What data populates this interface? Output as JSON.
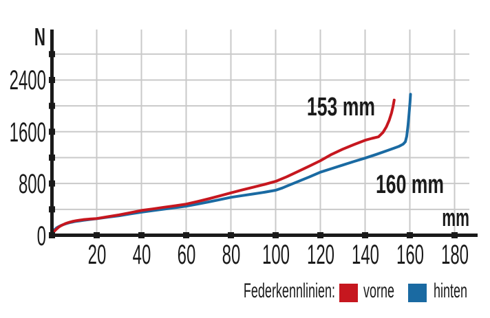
{
  "chart_data": {
    "type": "line",
    "title": "",
    "xlabel": "mm",
    "ylabel": "N",
    "xlim": [
      0,
      190.3
    ],
    "ylim": [
      0,
      3180
    ],
    "x_ticks": [
      20,
      40,
      60,
      80,
      100,
      120,
      140,
      160,
      180
    ],
    "y_ticks": [
      0,
      400,
      800,
      1200,
      1600,
      2000,
      2400,
      2800
    ],
    "y_tick_labels": [
      0,
      800,
      1600,
      2400
    ],
    "grid": true,
    "legend": {
      "title": "Federkennlinien:",
      "position": "bottom-right",
      "entries": [
        {
          "label": "vorne",
          "color": "#c6171f"
        },
        {
          "label": "hinten",
          "color": "#1a6aa2"
        }
      ]
    },
    "colors": {
      "grid": "#c9c9c9",
      "axis": "#1a1a1a",
      "text": "#1a1a1a",
      "vorne": "#c6171f",
      "hinten": "#1a6aa2"
    },
    "series": [
      {
        "name": "vorne",
        "color": "#c6171f",
        "points": [
          [
            0,
            0
          ],
          [
            1,
            60
          ],
          [
            2,
            95
          ],
          [
            3,
            125
          ],
          [
            4,
            147
          ],
          [
            5,
            165
          ],
          [
            6,
            180
          ],
          [
            7,
            192
          ],
          [
            8,
            203
          ],
          [
            9,
            212
          ],
          [
            10,
            220
          ],
          [
            11,
            226
          ],
          [
            12.5,
            234
          ],
          [
            14,
            241
          ],
          [
            17,
            251
          ],
          [
            20,
            258
          ],
          [
            25,
            287
          ],
          [
            30,
            314
          ],
          [
            35,
            348
          ],
          [
            40,
            383
          ],
          [
            45,
            407
          ],
          [
            50,
            432
          ],
          [
            55,
            456
          ],
          [
            60,
            481
          ],
          [
            65,
            521
          ],
          [
            70,
            563
          ],
          [
            75,
            608
          ],
          [
            80,
            655
          ],
          [
            85,
            700
          ],
          [
            90,
            742
          ],
          [
            95,
            786
          ],
          [
            100,
            832
          ],
          [
            105,
            905
          ],
          [
            110,
            985
          ],
          [
            115,
            1068
          ],
          [
            120,
            1152
          ],
          [
            125,
            1250
          ],
          [
            130,
            1330
          ],
          [
            135,
            1402
          ],
          [
            140,
            1468
          ],
          [
            143,
            1497
          ],
          [
            146,
            1522
          ],
          [
            148,
            1590
          ],
          [
            149.5,
            1675
          ],
          [
            150.8,
            1780
          ],
          [
            151.8,
            1890
          ],
          [
            152.5,
            1990
          ],
          [
            153,
            2090
          ]
        ]
      },
      {
        "name": "hinten",
        "color": "#1a6aa2",
        "points": [
          [
            0,
            0
          ],
          [
            1,
            80
          ],
          [
            2,
            112
          ],
          [
            3,
            133
          ],
          [
            4,
            150
          ],
          [
            5,
            163
          ],
          [
            6,
            175
          ],
          [
            7,
            186
          ],
          [
            8,
            195
          ],
          [
            9,
            203
          ],
          [
            10,
            210
          ],
          [
            11,
            216
          ],
          [
            12.5,
            223
          ],
          [
            14,
            230
          ],
          [
            17,
            244
          ],
          [
            20,
            256
          ],
          [
            25,
            279
          ],
          [
            30,
            302
          ],
          [
            35,
            330
          ],
          [
            40,
            357
          ],
          [
            45,
            381
          ],
          [
            50,
            404
          ],
          [
            55,
            426
          ],
          [
            60,
            449
          ],
          [
            65,
            481
          ],
          [
            70,
            515
          ],
          [
            75,
            550
          ],
          [
            80,
            586
          ],
          [
            85,
            613
          ],
          [
            90,
            638
          ],
          [
            95,
            665
          ],
          [
            100,
            695
          ],
          [
            103,
            730
          ],
          [
            105,
            760
          ],
          [
            110,
            830
          ],
          [
            115,
            900
          ],
          [
            120,
            975
          ],
          [
            125,
            1030
          ],
          [
            130,
            1085
          ],
          [
            135,
            1140
          ],
          [
            140,
            1192
          ],
          [
            145,
            1250
          ],
          [
            150,
            1310
          ],
          [
            153,
            1347
          ],
          [
            155,
            1372
          ],
          [
            157,
            1408
          ],
          [
            158,
            1445
          ],
          [
            158.6,
            1530
          ],
          [
            159.2,
            1700
          ],
          [
            159.7,
            1890
          ],
          [
            160.1,
            2060
          ],
          [
            160.3,
            2180
          ]
        ]
      }
    ],
    "annotations": [
      {
        "text": "153 mm",
        "x": 144.5,
        "y": 1996,
        "anchor": "end"
      },
      {
        "text": "160 mm",
        "x": 144.8,
        "y": 786,
        "anchor": "start"
      }
    ]
  }
}
